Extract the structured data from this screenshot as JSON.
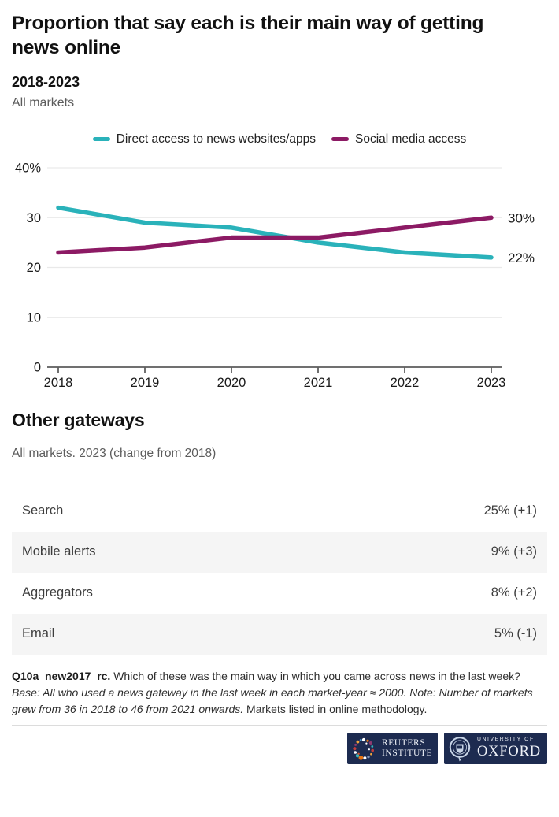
{
  "page": {
    "title": "Proportion that say each is their main way of getting news online",
    "subtitle": "2018-2023",
    "scope": "All markets"
  },
  "chart_data": {
    "type": "line",
    "x": [
      "2018",
      "2019",
      "2020",
      "2021",
      "2022",
      "2023"
    ],
    "series": [
      {
        "name": "Direct access to news websites/apps",
        "color": "#2AB2BA",
        "values": [
          32,
          29,
          28,
          25,
          23,
          22
        ],
        "end_label": "22%"
      },
      {
        "name": "Social media access",
        "color": "#8C1A64",
        "values": [
          23,
          24,
          26,
          26,
          28,
          30
        ],
        "end_label": "30%"
      }
    ],
    "ylim": [
      0,
      40
    ],
    "yticks": [
      {
        "v": 0,
        "label": "0"
      },
      {
        "v": 10,
        "label": "10"
      },
      {
        "v": 20,
        "label": "20"
      },
      {
        "v": 30,
        "label": "30"
      },
      {
        "v": 40,
        "label": "40%"
      }
    ],
    "grid": true,
    "legend_position": "top",
    "gridline_color": "#e9e9e9",
    "axis_color": "#404040"
  },
  "other_gateways": {
    "heading": "Other gateways",
    "caption": "All markets. 2023 (change from 2018)",
    "rows": [
      {
        "label": "Search",
        "value": "25% (+1)"
      },
      {
        "label": "Mobile alerts",
        "value": "9% (+3)"
      },
      {
        "label": "Aggregators",
        "value": "8% (+2)"
      },
      {
        "label": "Email",
        "value": "5% (-1)"
      }
    ]
  },
  "footnote": {
    "segments": [
      {
        "text": "Q10a_new2017_rc.",
        "style": "bold"
      },
      {
        "text": " Which of these was the main way in which you came across news in the last week? ",
        "style": "normal"
      },
      {
        "text": "Base: All who used a news gateway in the last week in each market-year ≈ 2000. Note: Number of markets grew from 36 in 2018 to 46 from 2021 onwards.",
        "style": "italic"
      },
      {
        "text": " Markets listed in online methodology.",
        "style": "normal"
      }
    ]
  },
  "logos": {
    "navy": "#1d2b50",
    "reuters": {
      "line1": "REUTERS",
      "line2": "INSTITUTE"
    },
    "oxford": {
      "line1": "UNIVERSITY OF",
      "line2": "OXFORD"
    }
  }
}
